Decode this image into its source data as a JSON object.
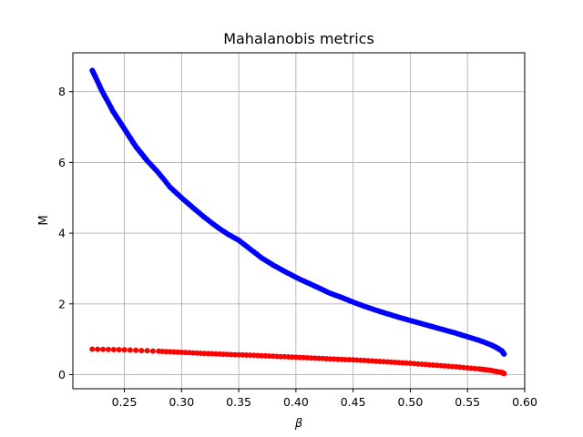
{
  "chart_data": {
    "type": "line",
    "title": "Mahalanobis metrics",
    "xlabel": "β",
    "ylabel": "M",
    "xlim": [
      0.205,
      0.6
    ],
    "ylim": [
      -0.4,
      9.1
    ],
    "xticks": [
      0.25,
      0.3,
      0.35,
      0.4,
      0.45,
      0.5,
      0.55,
      0.6
    ],
    "yticks": [
      0,
      2,
      4,
      6,
      8
    ],
    "grid": true,
    "legend": "none",
    "series": [
      {
        "color": "#0000ff",
        "x": [
          0.222,
          0.225,
          0.23,
          0.235,
          0.24,
          0.245,
          0.25,
          0.255,
          0.26,
          0.265,
          0.27,
          0.28,
          0.29,
          0.3,
          0.31,
          0.32,
          0.33,
          0.34,
          0.35,
          0.36,
          0.37,
          0.38,
          0.39,
          0.4,
          0.41,
          0.42,
          0.43,
          0.44,
          0.45,
          0.46,
          0.47,
          0.48,
          0.49,
          0.5,
          0.51,
          0.52,
          0.53,
          0.54,
          0.55,
          0.56,
          0.57,
          0.575,
          0.58,
          0.582
        ],
        "y": [
          8.6,
          8.4,
          8.05,
          7.75,
          7.45,
          7.2,
          6.95,
          6.7,
          6.45,
          6.25,
          6.05,
          5.7,
          5.3,
          5.0,
          4.72,
          4.45,
          4.2,
          3.98,
          3.8,
          3.55,
          3.3,
          3.1,
          2.92,
          2.75,
          2.6,
          2.45,
          2.3,
          2.18,
          2.05,
          1.93,
          1.82,
          1.72,
          1.62,
          1.53,
          1.44,
          1.35,
          1.26,
          1.17,
          1.07,
          0.97,
          0.85,
          0.77,
          0.67,
          0.58
        ]
      },
      {
        "color": "#ff0000",
        "x": [
          0.222,
          0.25,
          0.28,
          0.3,
          0.32,
          0.34,
          0.36,
          0.38,
          0.4,
          0.42,
          0.44,
          0.46,
          0.48,
          0.5,
          0.52,
          0.54,
          0.56,
          0.57,
          0.58,
          0.582
        ],
        "y": [
          0.72,
          0.7,
          0.66,
          0.63,
          0.6,
          0.57,
          0.55,
          0.52,
          0.49,
          0.46,
          0.43,
          0.4,
          0.36,
          0.32,
          0.27,
          0.22,
          0.16,
          0.12,
          0.06,
          0.03
        ]
      }
    ]
  }
}
